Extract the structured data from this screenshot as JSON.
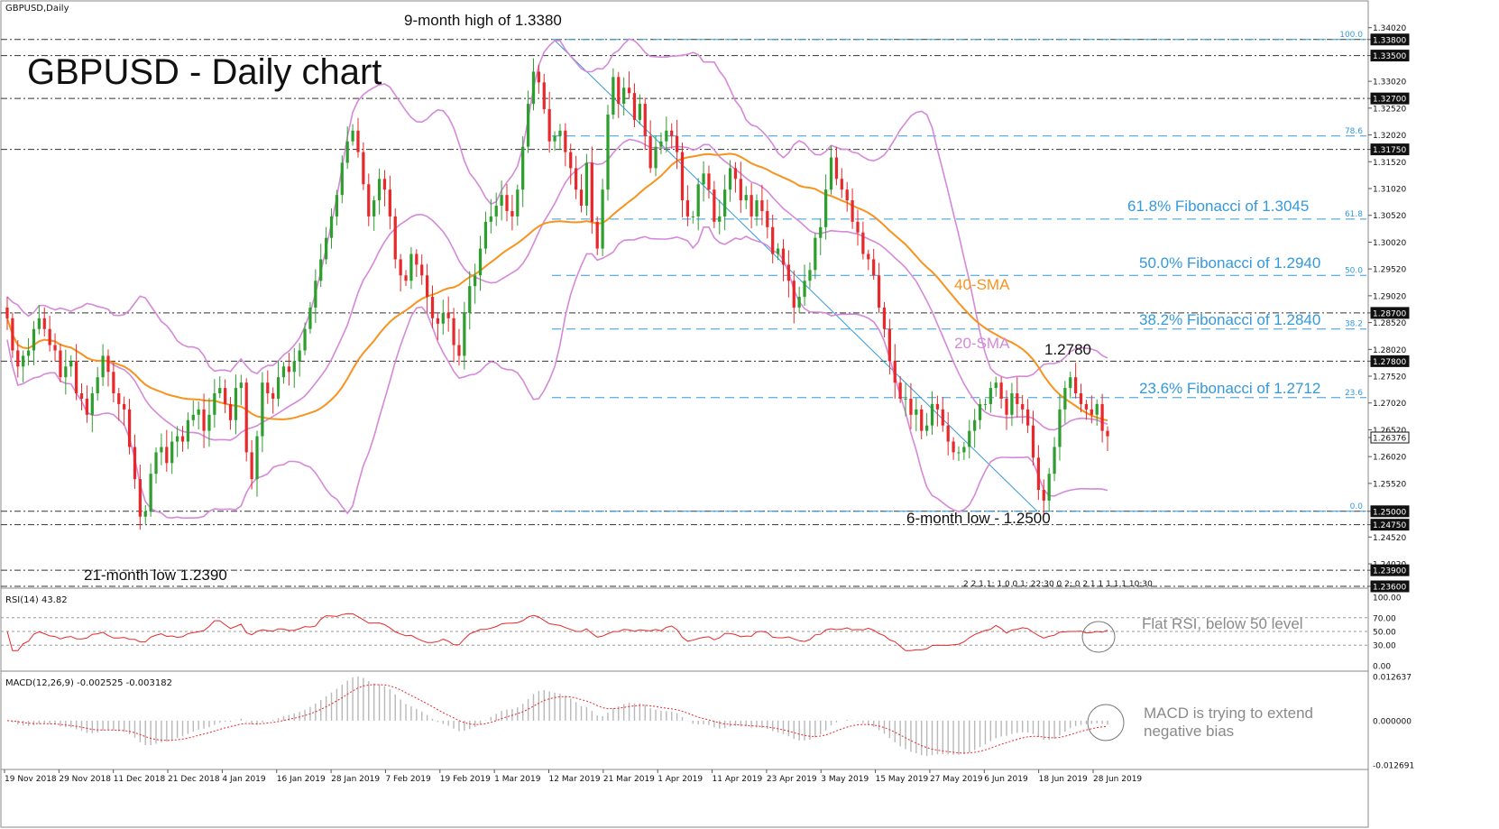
{
  "symbol_label": "GBPUSD,Daily",
  "chart_data": [
    {
      "type": "candlestick",
      "title": "GBPUSD - Daily chart",
      "ylim": [
        1.236,
        1.342
      ],
      "y_ticks": [
        "1.34020",
        "1.33800",
        "1.33500",
        "1.33020",
        "1.32700",
        "1.32520",
        "1.32020",
        "1.31750",
        "1.31520",
        "1.31020",
        "1.30520",
        "1.30020",
        "1.29520",
        "1.29020",
        "1.28700",
        "1.28520",
        "1.28020",
        "1.27800",
        "1.27520",
        "1.27020",
        "1.26520",
        "1.26376",
        "1.26020",
        "1.25520",
        "1.25000",
        "1.24750",
        "1.24520",
        "1.24020",
        "1.23900",
        "1.23600"
      ],
      "boxed_levels": [
        "1.33800",
        "1.33500",
        "1.32700",
        "1.31750",
        "1.28700",
        "1.27800",
        "1.26376",
        "1.25000",
        "1.24750",
        "1.23900",
        "1.23600"
      ],
      "current_price": "1.26376",
      "horizontal_levels": [
        1.338,
        1.335,
        1.327,
        1.3175,
        1.287,
        1.278,
        1.25,
        1.2475,
        1.239,
        1.236
      ],
      "fibonacci": [
        {
          "ratio": "100.0",
          "level": 1.338
        },
        {
          "ratio": "78.6",
          "level": 1.32
        },
        {
          "ratio": "61.8",
          "level": 1.3045
        },
        {
          "ratio": "50.0",
          "level": 1.294
        },
        {
          "ratio": "38.2",
          "level": 1.284
        },
        {
          "ratio": "23.6",
          "level": 1.2712
        },
        {
          "ratio": "0.0",
          "level": 1.25
        }
      ],
      "annotations": [
        "9-month high of 1.3380",
        "61.8% Fibonacci of 1.3045",
        "50.0% Fibonacci of 1.2940",
        "40-SMA",
        "38.2% Fibonacci of 1.2840",
        "20-SMA",
        "1.2780",
        "23.6% Fibonacci of 1.2712",
        "6-month low - 1.2500",
        "21-month low 1.2390"
      ],
      "session_stamp": "2 2 1 1: 1 0 0 1: 22:30   0 2: 0 2 1 1 1 1 1 10:30",
      "colors": {
        "up": "#2e9e2e",
        "down": "#e8282a",
        "sma40": "#f7931e",
        "bollinger": "#d589d8",
        "fib": "#3399dd",
        "trendline": "#3399dd"
      },
      "series": {
        "candles_close": [
          1.286,
          1.28,
          1.277,
          1.279,
          1.28,
          1.284,
          1.286,
          1.284,
          1.281,
          1.28,
          1.275,
          1.277,
          1.278,
          1.272,
          1.271,
          1.268,
          1.272,
          1.275,
          1.279,
          1.276,
          1.272,
          1.27,
          1.269,
          1.262,
          1.256,
          1.249,
          1.25,
          1.257,
          1.261,
          1.262,
          1.259,
          1.263,
          1.264,
          1.263,
          1.267,
          1.268,
          1.269,
          1.265,
          1.268,
          1.272,
          1.273,
          1.27,
          1.267,
          1.273,
          1.274,
          1.261,
          1.256,
          1.264,
          1.274,
          1.272,
          1.271,
          1.275,
          1.277,
          1.276,
          1.278,
          1.28,
          1.284,
          1.288,
          1.293,
          1.297,
          1.301,
          1.305,
          1.309,
          1.315,
          1.319,
          1.321,
          1.317,
          1.311,
          1.305,
          1.308,
          1.312,
          1.31,
          1.305,
          1.297,
          1.294,
          1.293,
          1.298,
          1.296,
          1.294,
          1.29,
          1.286,
          1.285,
          1.287,
          1.286,
          1.281,
          1.279,
          1.287,
          1.292,
          1.294,
          1.299,
          1.304,
          1.305,
          1.307,
          1.309,
          1.306,
          1.305,
          1.31,
          1.318,
          1.326,
          1.332,
          1.33,
          1.325,
          1.319,
          1.32,
          1.321,
          1.317,
          1.314,
          1.31,
          1.307,
          1.315,
          1.304,
          1.299,
          1.31,
          1.324,
          1.331,
          1.326,
          1.329,
          1.328,
          1.323,
          1.326,
          1.32,
          1.314,
          1.318,
          1.319,
          1.321,
          1.32,
          1.317,
          1.308,
          1.305,
          1.305,
          1.311,
          1.313,
          1.31,
          1.304,
          1.305,
          1.31,
          1.314,
          1.312,
          1.308,
          1.309,
          1.305,
          1.308,
          1.306,
          1.303,
          1.298,
          1.299,
          1.296,
          1.293,
          1.288,
          1.29,
          1.293,
          1.295,
          1.301,
          1.303,
          1.31,
          1.316,
          1.312,
          1.31,
          1.308,
          1.304,
          1.302,
          1.298,
          1.297,
          1.294,
          1.288,
          1.284,
          1.278,
          1.274,
          1.271,
          1.271,
          1.268,
          1.269,
          1.265,
          1.266,
          1.27,
          1.269,
          1.266,
          1.263,
          1.261,
          1.261,
          1.262,
          1.265,
          1.267,
          1.27,
          1.27,
          1.273,
          1.274,
          1.271,
          1.268,
          1.272,
          1.27,
          1.269,
          1.266,
          1.26,
          1.254,
          1.252,
          1.257,
          1.262,
          1.269,
          1.273,
          1.275,
          1.272,
          1.27,
          1.269,
          1.268,
          1.27,
          1.265,
          1.264
        ]
      },
      "x_ticks": [
        "19 Nov 2018",
        "29 Nov 2018",
        "11 Dec 2018",
        "21 Dec 2018",
        "4 Jan 2019",
        "16 Jan 2019",
        "28 Jan 2019",
        "7 Feb 2019",
        "19 Feb 2019",
        "1 Mar 2019",
        "12 Mar 2019",
        "21 Mar 2019",
        "1 Apr 2019",
        "11 Apr 2019",
        "23 Apr 2019",
        "3 May 2019",
        "15 May 2019",
        "27 May 2019",
        "6 Jun 2019",
        "18 Jun 2019",
        "28 Jun 2019"
      ]
    },
    {
      "type": "line",
      "label": "RSI(14) 43.82",
      "ylim": [
        0,
        100
      ],
      "y_ticks": [
        "100.00",
        "70.00",
        "50.00",
        "30.00",
        "0.00"
      ],
      "levels": [
        70,
        50,
        30
      ],
      "annotation": "Flat RSI, below 50 level",
      "color": "#e8282a"
    },
    {
      "type": "bar+line",
      "label": "MACD(12,26,9) -0.002525 -0.003182",
      "ylim": [
        -0.012691,
        0.012637
      ],
      "y_ticks": [
        "0.012637",
        "0.000000",
        "-0.012691"
      ],
      "annotation_line1": "MACD is trying to extend",
      "annotation_line2": "negative bias",
      "color": "#e8282a"
    }
  ]
}
